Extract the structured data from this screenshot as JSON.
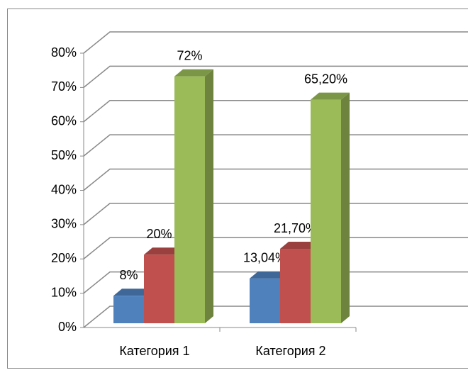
{
  "chart_data": {
    "type": "bar3d",
    "categories": [
      "Категория 1",
      "Категория 2"
    ],
    "series": [
      {
        "color": "#4f81bd",
        "values": [
          8,
          13.04
        ],
        "value_labels": [
          "8%",
          "13,04%"
        ]
      },
      {
        "color": "#c0504d",
        "values": [
          20,
          21.7
        ],
        "value_labels": [
          "20%",
          "21,70%"
        ]
      },
      {
        "color": "#9bbb59",
        "values": [
          72,
          65.2
        ],
        "value_labels": [
          "72%",
          "65,20%"
        ]
      }
    ],
    "ylim": [
      0,
      80
    ],
    "yticks": [
      {
        "value": 0,
        "label": "0%"
      },
      {
        "value": 10,
        "label": "10%"
      },
      {
        "value": 20,
        "label": "20%"
      },
      {
        "value": 30,
        "label": "30%"
      },
      {
        "value": 40,
        "label": "40%"
      },
      {
        "value": 50,
        "label": "50%"
      },
      {
        "value": 60,
        "label": "60%"
      },
      {
        "value": 70,
        "label": "70%"
      },
      {
        "value": 80,
        "label": "80%"
      }
    ],
    "grid": true
  }
}
